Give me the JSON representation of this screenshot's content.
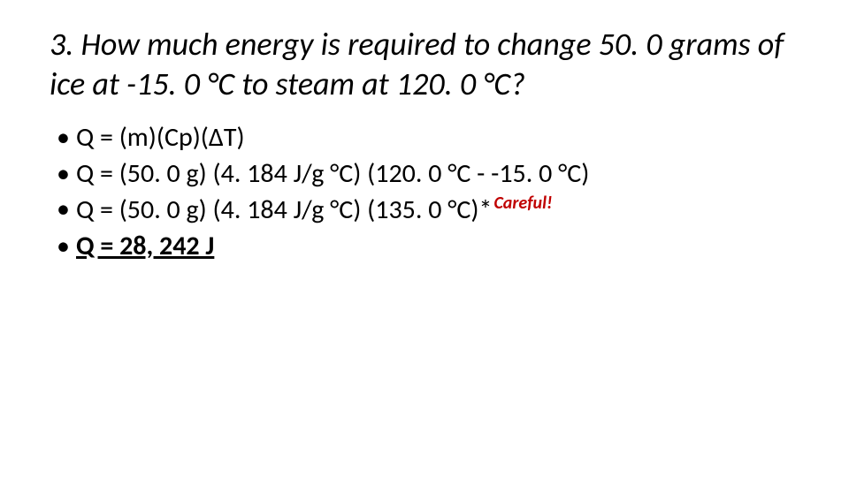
{
  "title": "3. How much energy is required to change 50. 0 grams of ice at -15. 0 °C to steam at 120. 0 °C?",
  "bullets": {
    "line1": "Q = (m)(Cp)(ΔT)",
    "line2": "Q = (50. 0 g) (4. 184 J/g °C) (120. 0 °C - -15. 0 °C)",
    "line3_main": "Q = (50. 0 g) (4. 184 J/g °C) (135. 0 °C)*",
    "line3_note": "Careful!",
    "line4": "Q = 28, 242 J"
  },
  "colors": {
    "text": "#000000",
    "note": "#c00000",
    "background": "#ffffff"
  },
  "typography": {
    "title_fontsize": 36,
    "title_style": "italic",
    "bullet_fontsize": 30,
    "note_fontsize": 20,
    "font_family": "Calibri"
  }
}
